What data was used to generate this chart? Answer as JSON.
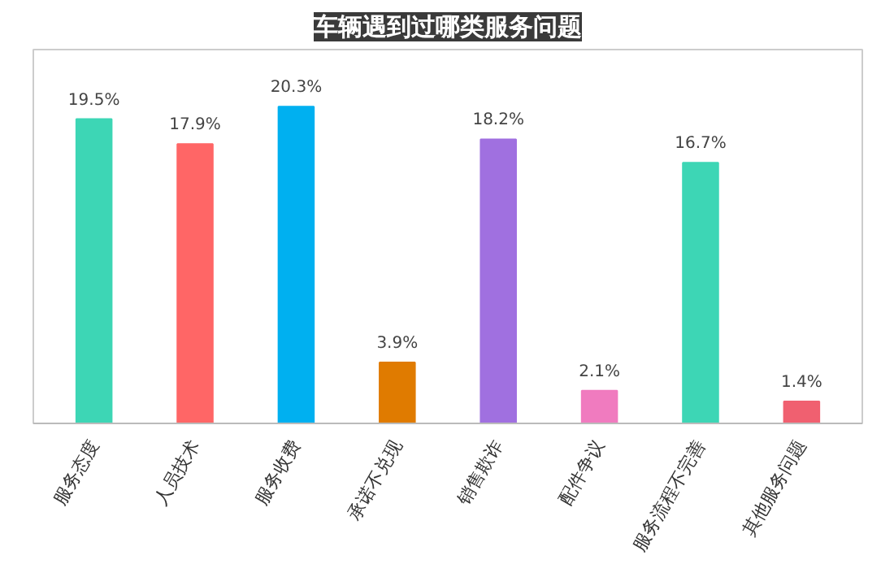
{
  "chart_data": {
    "type": "bar",
    "title": "车辆遇到过哪类服务问题",
    "categories": [
      "服务态度",
      "人员技术",
      "服务收费",
      "承诺不兑现",
      "销售欺诈",
      "配件争议",
      "服务流程不完善",
      "其他服务问题"
    ],
    "values": [
      19.5,
      17.9,
      20.3,
      3.9,
      18.2,
      2.1,
      16.7,
      1.4
    ],
    "colors": [
      "#3dd6b5",
      "#ff6666",
      "#00b0f0",
      "#e07b00",
      "#a070e0",
      "#f07bbf",
      "#3dd6b5",
      "#f06070"
    ],
    "data_labels": true,
    "value_labels": [
      "19.5%",
      "17.9%",
      "20.3%",
      "3.9%",
      "18.2%",
      "2.1%",
      "16.7%",
      "1.4%"
    ],
    "grid": false
  }
}
